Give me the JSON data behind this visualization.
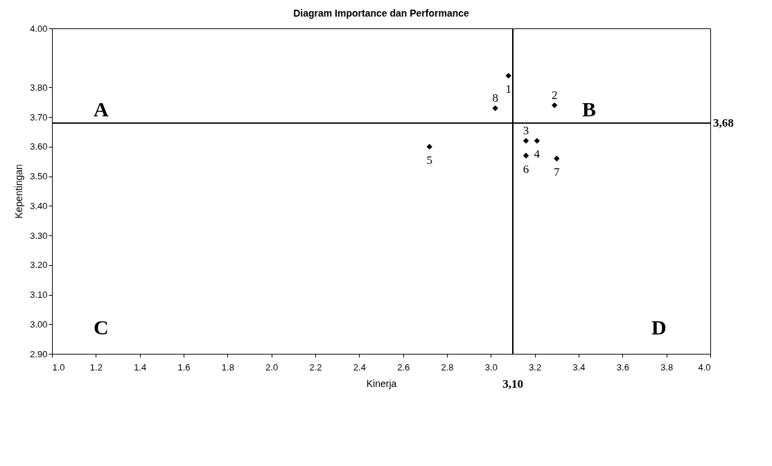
{
  "chart_data": {
    "type": "scatter",
    "title": "Diagram Importance dan Performance",
    "xlabel": "Kinerja",
    "ylabel": "Kepentingan",
    "x": [
      3.08,
      3.29,
      3.16,
      3.21,
      2.72,
      3.16,
      3.3,
      3.02
    ],
    "series": [
      {
        "color": "#000000",
        "values": [
          3.84,
          3.74,
          3.62,
          3.62,
          3.6,
          3.57,
          3.56,
          3.73
        ]
      }
    ],
    "marker": "diamond",
    "grid": false,
    "xlim": [
      1.0,
      4.0
    ],
    "ylim": [
      2.9,
      4.0
    ],
    "xticks": [
      {
        "value": 1.0,
        "label": "1.0"
      },
      {
        "value": 1.2,
        "label": "1.2"
      },
      {
        "value": 1.4,
        "label": "1.4"
      },
      {
        "value": 1.6,
        "label": "1.6"
      },
      {
        "value": 1.8,
        "label": "1.8"
      },
      {
        "value": 2.0,
        "label": "2.0"
      },
      {
        "value": 2.2,
        "label": "2.2"
      },
      {
        "value": 2.4,
        "label": "2.4"
      },
      {
        "value": 2.6,
        "label": "2.6"
      },
      {
        "value": 2.8,
        "label": "2.8"
      },
      {
        "value": 3.0,
        "label": "3.0"
      },
      {
        "value": 3.2,
        "label": "3.2"
      },
      {
        "value": 3.4,
        "label": "3.4"
      },
      {
        "value": 3.6,
        "label": "3.6"
      },
      {
        "value": 3.8,
        "label": "3.8"
      },
      {
        "value": 4.0,
        "label": "4.0"
      }
    ],
    "yticks": [
      {
        "value": 2.9,
        "label": "2.90"
      },
      {
        "value": 3.0,
        "label": "3.00"
      },
      {
        "value": 3.1,
        "label": "3.10"
      },
      {
        "value": 3.2,
        "label": "3.20"
      },
      {
        "value": 3.3,
        "label": "3.30"
      },
      {
        "value": 3.4,
        "label": "3.40"
      },
      {
        "value": 3.5,
        "label": "3.50"
      },
      {
        "value": 3.6,
        "label": "3.60"
      },
      {
        "value": 3.7,
        "label": "3.70"
      },
      {
        "value": 3.8,
        "label": "3.80"
      },
      {
        "value": 4.0,
        "label": "4.00"
      }
    ],
    "ref_lines": [
      {
        "axis": "x",
        "value": 3.1,
        "label": "3,10"
      },
      {
        "axis": "y",
        "value": 3.68,
        "label": "3,68"
      }
    ],
    "annotations": [
      {
        "text": "1",
        "x": 3.08,
        "y": 3.84
      },
      {
        "text": "2",
        "x": 3.29,
        "y": 3.74
      },
      {
        "text": "3",
        "x": 3.16,
        "y": 3.62
      },
      {
        "text": "4",
        "x": 3.21,
        "y": 3.62
      },
      {
        "text": "5",
        "x": 2.72,
        "y": 3.6
      },
      {
        "text": "6",
        "x": 3.16,
        "y": 3.57
      },
      {
        "text": "7",
        "x": 3.3,
        "y": 3.56
      },
      {
        "text": "8",
        "x": 3.02,
        "y": 3.73
      },
      "A",
      "B",
      "C",
      "D"
    ]
  }
}
